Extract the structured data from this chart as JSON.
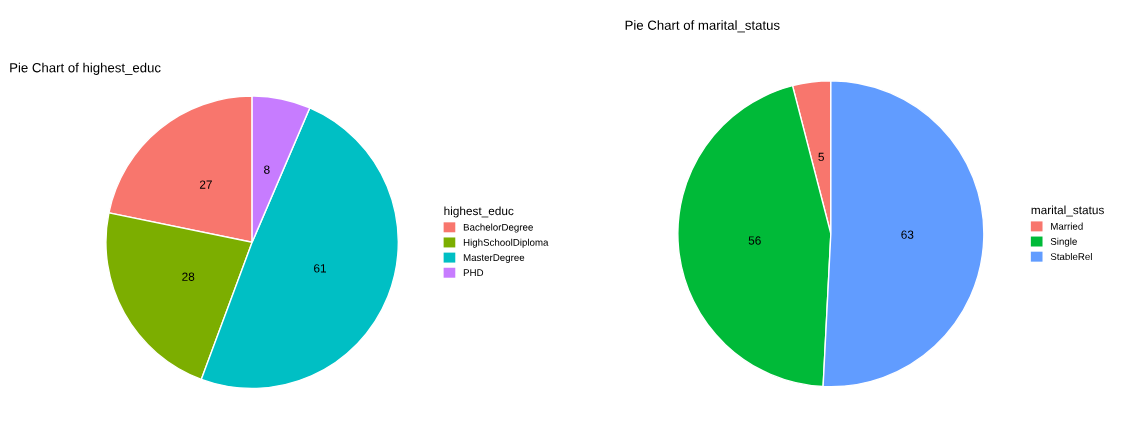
{
  "chart_data": [
    {
      "type": "pie",
      "title": "Pie Chart of highest_educ",
      "legend_title": "highest_educ",
      "legend": "right",
      "data_labels": true,
      "categories": [
        "BachelorDegree",
        "HighSchoolDiploma",
        "MasterDegree",
        "PHD"
      ],
      "values": [
        27,
        28,
        61,
        8
      ],
      "colors": [
        "#f8766d",
        "#7cae00",
        "#00bfc4",
        "#c77cff"
      ]
    },
    {
      "type": "pie",
      "title": "Pie Chart of marital_status",
      "legend_title": "marital_status",
      "legend": "right",
      "data_labels": true,
      "categories": [
        "Married",
        "Single",
        "StableRel"
      ],
      "values": [
        5,
        56,
        63
      ],
      "colors": [
        "#f8766d",
        "#00ba38",
        "#619cff"
      ]
    }
  ]
}
